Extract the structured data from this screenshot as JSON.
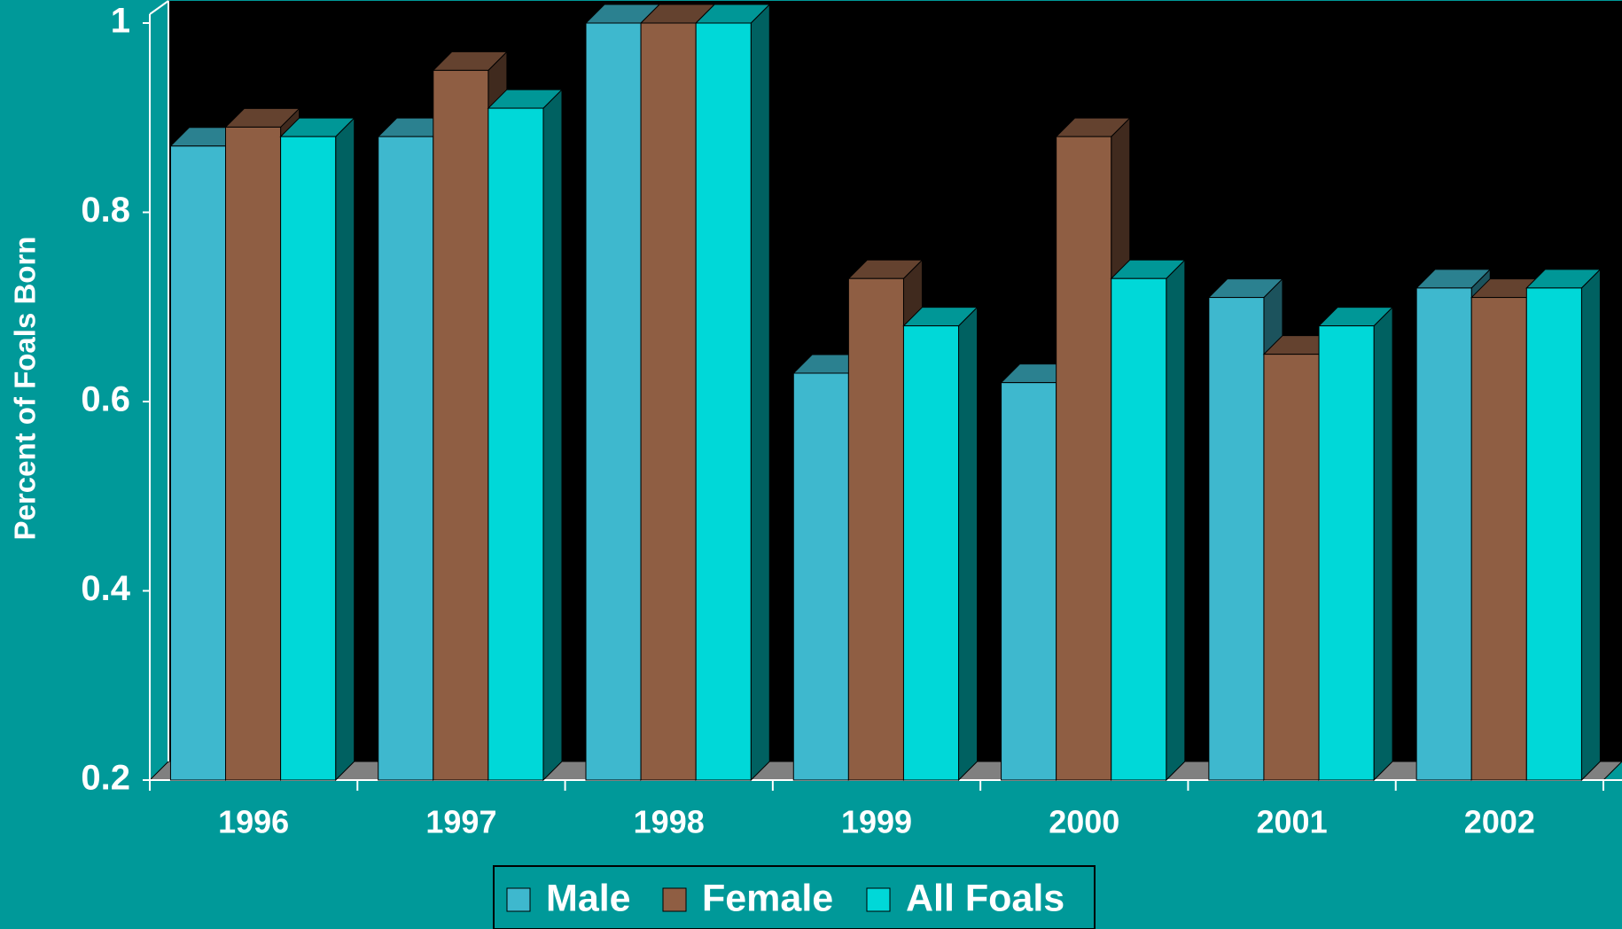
{
  "chart_data": {
    "type": "bar",
    "three_d": true,
    "grid": false,
    "legend": "bottom",
    "y_label": "Percent of Foals Born",
    "categories": [
      "1996",
      "1997",
      "1998",
      "1999",
      "2000",
      "2001",
      "2002"
    ],
    "series": [
      {
        "name": "Male",
        "color": "#3eb8ce",
        "values": [
          0.87,
          0.88,
          1.0,
          0.63,
          0.62,
          0.71,
          0.72
        ]
      },
      {
        "name": "Female",
        "color": "#8f5e43",
        "values": [
          0.89,
          0.95,
          1.0,
          0.73,
          0.88,
          0.65,
          0.71
        ]
      },
      {
        "name": "All Foals",
        "color": "#00d8d8",
        "values": [
          0.88,
          0.91,
          1.0,
          0.68,
          0.73,
          0.68,
          0.72
        ]
      }
    ],
    "ylim": [
      0.2,
      1
    ],
    "yticks": [
      0.2,
      0.4,
      0.6,
      0.8,
      1
    ]
  }
}
